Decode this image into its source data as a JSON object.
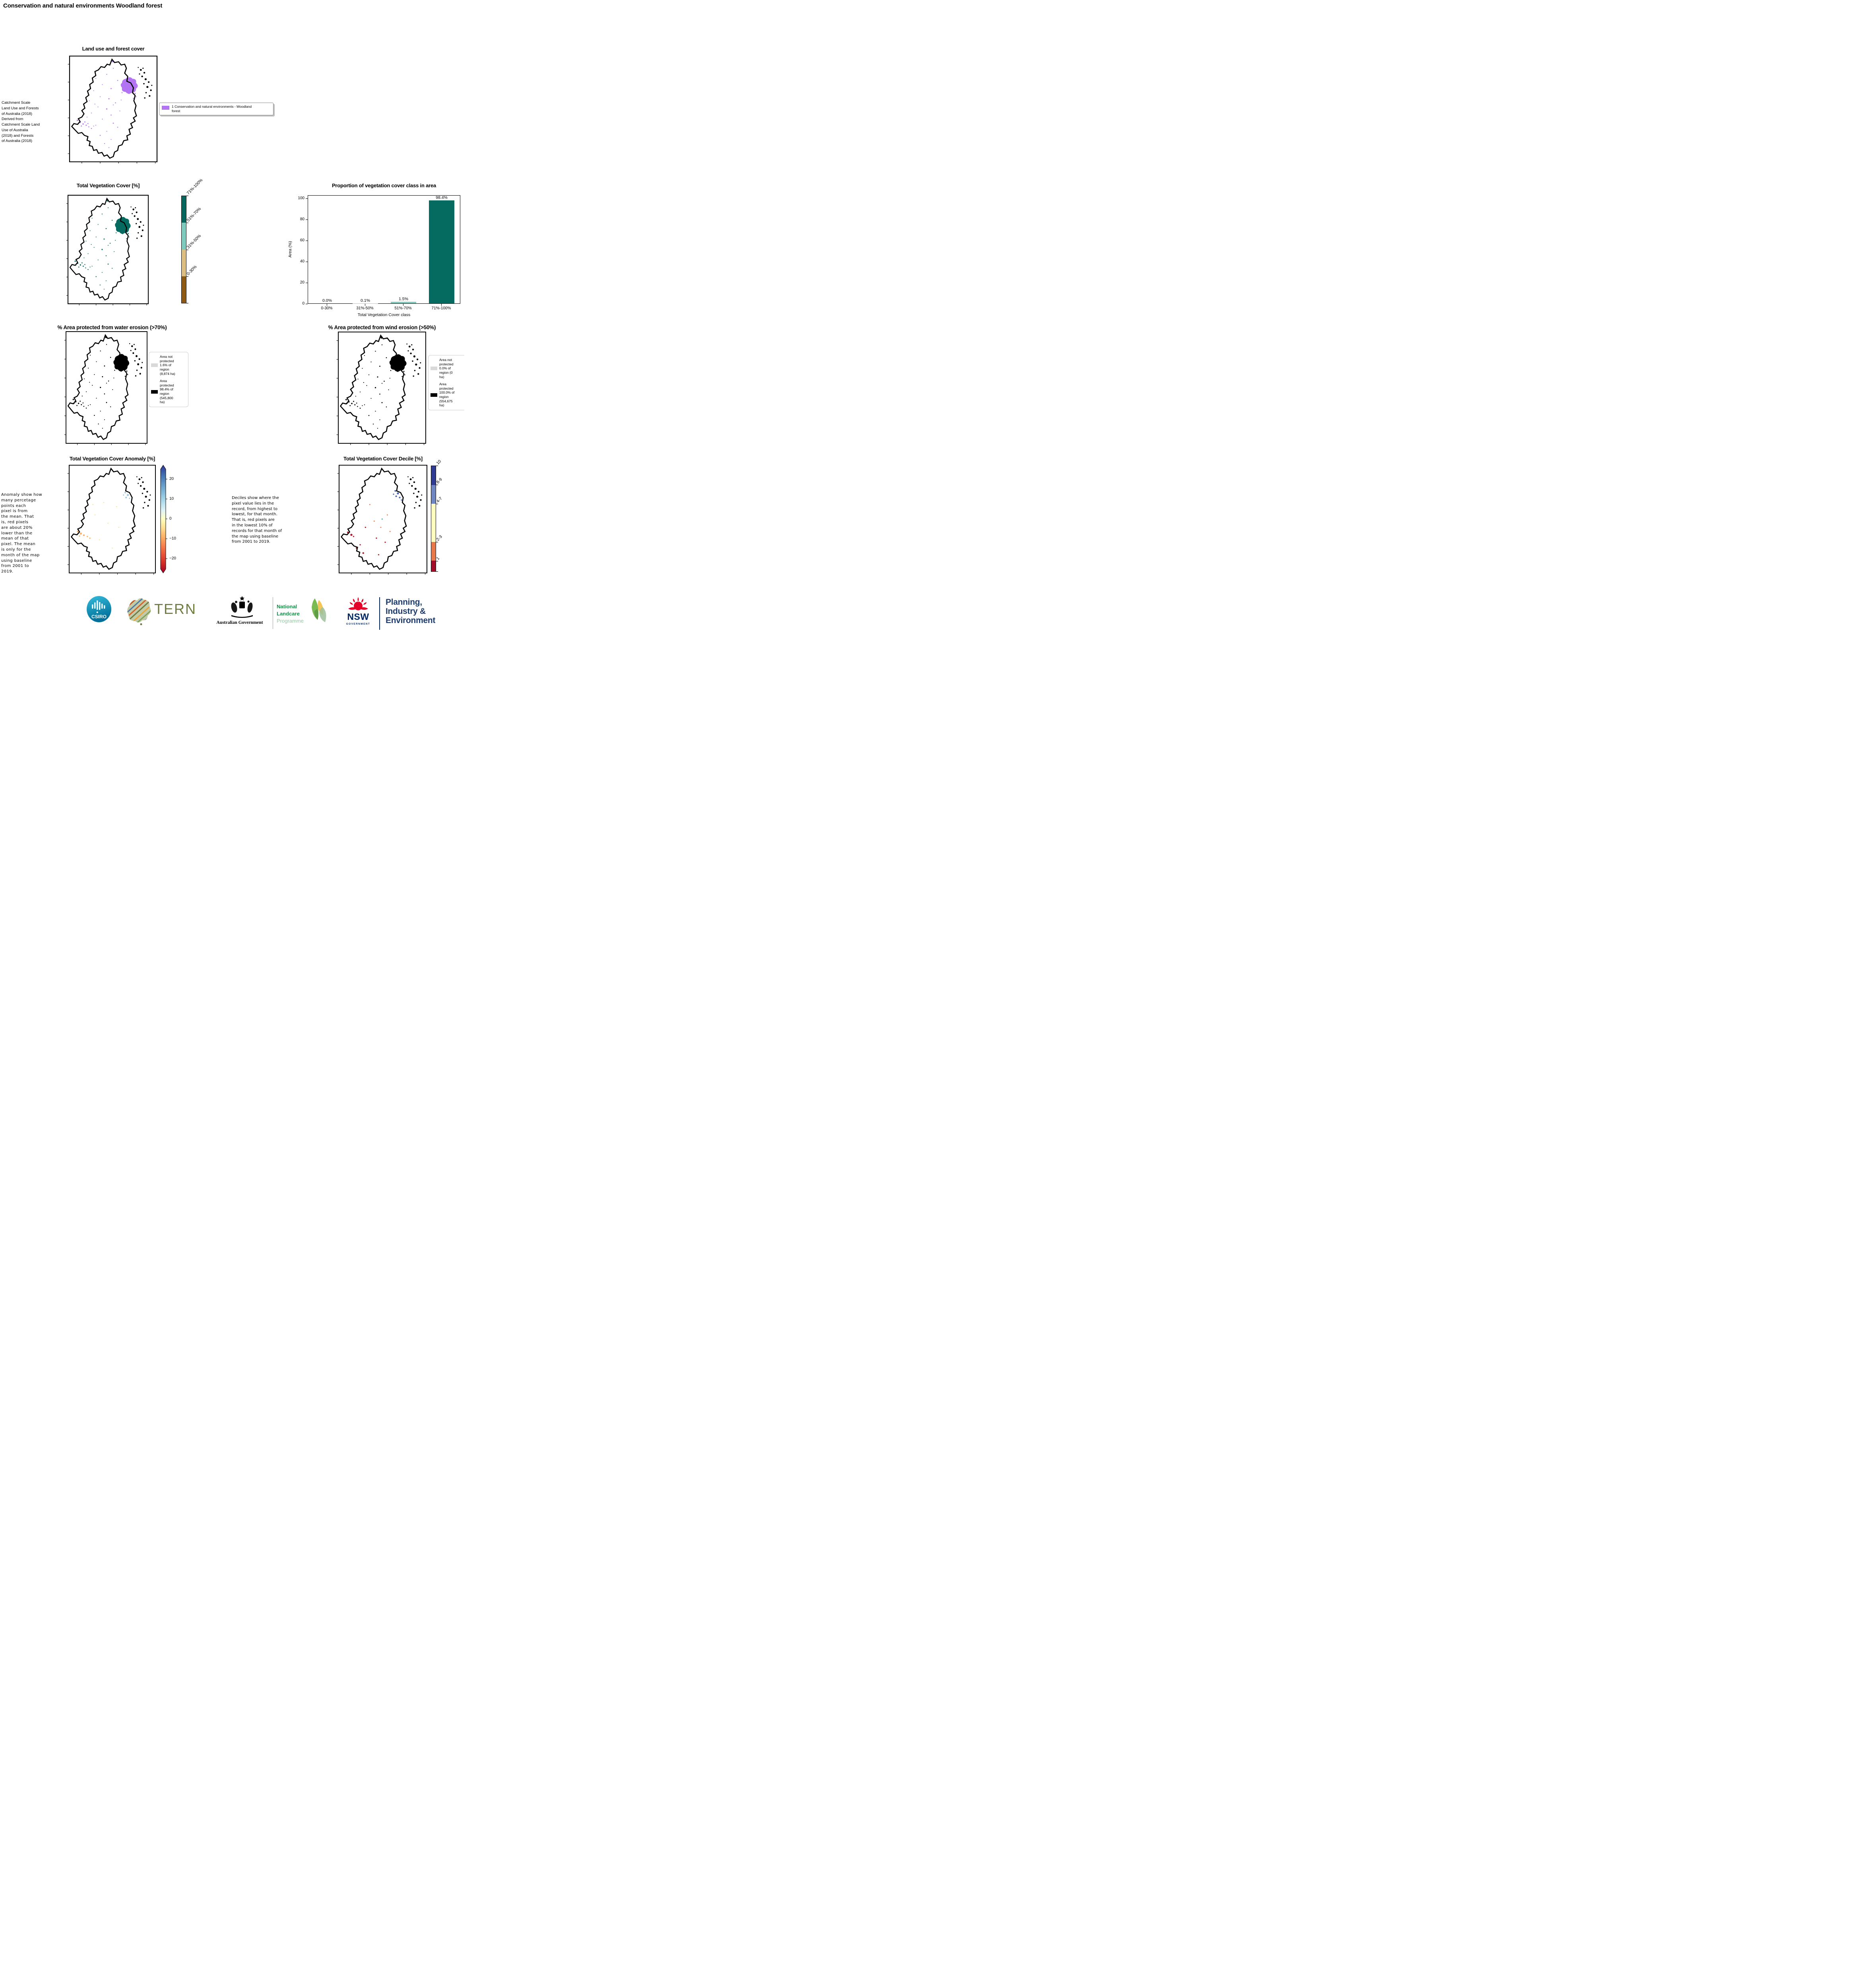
{
  "page": {
    "title": "Conservation and natural environments Woodland forest"
  },
  "panels": {
    "land_use": {
      "title": "Land use and forest cover",
      "caption": " Catchment Scale\nLand Use and Forests\nof Australia (2018)\nDerived from\nCatchment Scale Land\nUse of Australia\n(2018) and Forests\nof Australia (2018)",
      "legend": {
        "label": "1 Conservation and natural environments - Woodland\nforest",
        "color": "#b274f3"
      }
    },
    "veg_cover": {
      "title": "Total Vegetation Cover [%]",
      "classes": [
        {
          "label": "71%-100%",
          "color": "#04685e"
        },
        {
          "label": "51%-70%",
          "color": "#7ecbbd"
        },
        {
          "label": "31%-50%",
          "color": "#dcbe80"
        },
        {
          "label": "0-30%",
          "color": "#8e5a11"
        }
      ]
    },
    "water_erosion": {
      "title": "% Area protected from water erosion (>70%)",
      "legend": [
        {
          "label": "Area not\nprotected\n1.6% of\nregion\n(8,874 ha)",
          "color": "#d9d9d9"
        },
        {
          "label": "Area\nprotected\n98.4% of\nregion\n(545,800\nha)",
          "color": "#000000"
        }
      ]
    },
    "wind_erosion": {
      "title": "% Area protected from wind erosion (>50%)",
      "legend": [
        {
          "label": "Area not\nprotected\n0.0% of\nregion (0\nha)",
          "color": "#d9d9d9"
        },
        {
          "label": "Area\nprotected\n100.0% of\nregion\n(554,675\nha)",
          "color": "#000000"
        }
      ]
    },
    "anomaly": {
      "title": "Total Vegetation Cover Anomaly [%]",
      "caption": "Anomaly show how\nmany percetage\npoints each\npixel is from\nthe mean. That\nis, red pixels\nare about 20%\nlower than the\nmean of that\npixel. The mean\nis only for the\nmonth of the map\nusing baseline\nfrom 2001 to\n2019.",
      "ticks": [
        "20",
        "10",
        "0",
        "−10",
        "−20"
      ],
      "cmap_top": "#313695",
      "cmap_bottom": "#a50026"
    },
    "decile": {
      "title": "Total Vegetation Cover Decile [%]",
      "caption": "Deciles show where the\npixel value lies in the\nrecord, from highest to\nlowest, for that month.\nThat is, red pixels are\nin the lowest 10% of\nrecords for that month of\nthe map using baseline\nfrom 2001 to 2019.",
      "classes": [
        {
          "label": "10",
          "color": "#303c93",
          "size": 18
        },
        {
          "label": "8-9",
          "color": "#6e87c3",
          "size": 18
        },
        {
          "label": "4-7",
          "color": "#fdfdbe",
          "size": 36
        },
        {
          "label": "2-3",
          "color": "#e8784a",
          "size": 18
        },
        {
          "label": "1",
          "color": "#a40d2a",
          "size": 10
        }
      ]
    }
  },
  "chart_data": {
    "type": "bar",
    "title": "Proportion of vegetation cover class in area",
    "categories": [
      "0-30%",
      "31%-50%",
      "51%-70%",
      "71%-100%"
    ],
    "values": [
      0.0,
      0.1,
      1.5,
      98.4
    ],
    "labels": [
      "0.0%",
      "0.1%",
      "1.5%",
      "98.4%"
    ],
    "bar_colors": [
      "#8e5a11",
      "#dcbe80",
      "#7ecbbd",
      "#056b61"
    ],
    "xlabel": "Total Vegetation Cover class",
    "ylabel": "Area (%)",
    "ylim": [
      0,
      103
    ],
    "yticks": [
      0,
      20,
      40,
      60,
      80,
      100
    ],
    "grid": false,
    "legend_position": "none"
  },
  "footer": {
    "csiro": {
      "label": "CSIRO",
      "color": "#00a9ce"
    },
    "tern": {
      "label": "TERN",
      "color": "#6f7d40"
    },
    "aus_gov": {
      "label": "Australian Government"
    },
    "landcare": {
      "line1": "National",
      "line2": "Landcare",
      "line3": "Programme",
      "green_dark": "#0a9648",
      "green_light": "#90cba0"
    },
    "nsw": {
      "label": "NSW",
      "sub": "GOVERNMENT",
      "navy": "#002664",
      "red": "#e4002b"
    },
    "planning": {
      "line1": "Planning,",
      "line2": "Industry &",
      "line3": "Environment",
      "navy": "#1e3c6e"
    }
  }
}
